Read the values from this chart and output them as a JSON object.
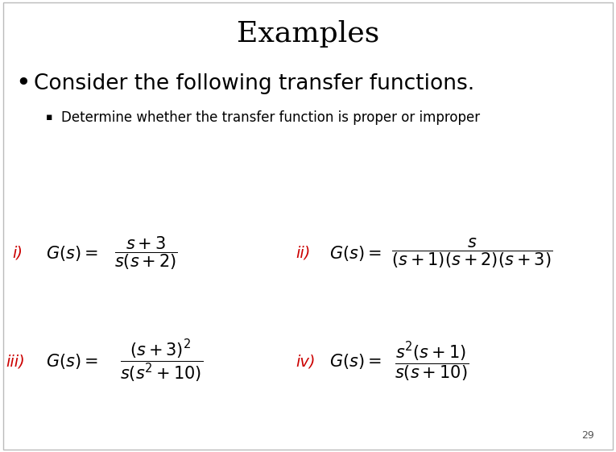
{
  "title": "Examples",
  "title_fontsize": 26,
  "title_fontweight": "normal",
  "bg_color": "#ffffff",
  "bullet_text": "Consider the following transfer functions.",
  "bullet_fontsize": 19,
  "sub_bullet_text": "Determine whether the transfer function is proper or improper",
  "sub_bullet_fontsize": 12,
  "label_color": "#cc0000",
  "label_fontsize": 14,
  "formula_fontsize": 15,
  "page_number": "29",
  "border_color": "#aaaaaa"
}
